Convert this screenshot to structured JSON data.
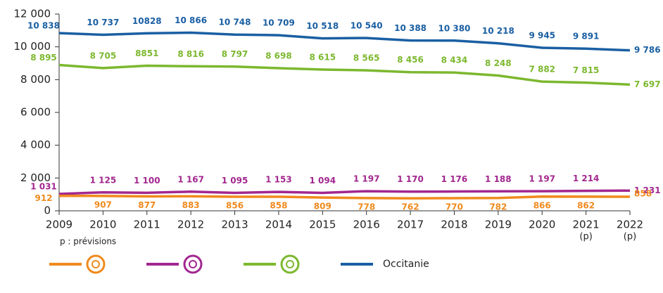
{
  "chart_data": {
    "type": "line",
    "categories": [
      "2009",
      "2010",
      "2011",
      "2012",
      "2013",
      "2014",
      "2015",
      "2016",
      "2017",
      "2018",
      "2019",
      "2020",
      "2021",
      "2022"
    ],
    "category_notes": [
      null,
      null,
      null,
      null,
      null,
      null,
      null,
      null,
      null,
      null,
      null,
      null,
      "(p)",
      "(p)"
    ],
    "note": "p : prévisions",
    "series": [
      {
        "name": "Occitanie",
        "color": "#1a5fa3",
        "values": [
          10838,
          10737,
          10828,
          10866,
          10748,
          10709,
          10518,
          10540,
          10388,
          10380,
          10218,
          9945,
          9891,
          9786
        ],
        "value_labels": [
          "10 838",
          "10 737",
          "10828",
          "10 866",
          "10 748",
          "10 709",
          "10 518",
          "10 540",
          "10 388",
          "10 380",
          "10 218",
          "9 945",
          "9 891",
          "9 786"
        ]
      },
      {
        "name": null,
        "color": "#7cb82f",
        "values": [
          8895,
          8705,
          8851,
          8816,
          8797,
          8698,
          8615,
          8565,
          8456,
          8434,
          8248,
          7882,
          7815,
          7697
        ],
        "value_labels": [
          "8 895",
          "8 705",
          "8851",
          "8 816",
          "8 797",
          "8 698",
          "8 615",
          "8 565",
          "8 456",
          "8 434",
          "8 248",
          "7 882",
          "7 815",
          "7 697"
        ]
      },
      {
        "name": null,
        "color": "#a2278f",
        "values": [
          1031,
          1125,
          1100,
          1167,
          1095,
          1153,
          1094,
          1197,
          1170,
          1176,
          1188,
          1197,
          1214,
          1231
        ],
        "value_labels": [
          "1 031",
          "1 125",
          "1 100",
          "1 167",
          "1 095",
          "1 153",
          "1 094",
          "1 197",
          "1 170",
          "1 176",
          "1 188",
          "1 197",
          "1 214",
          "1 231"
        ]
      },
      {
        "name": null,
        "color": "#f08a1d",
        "values": [
          912,
          907,
          877,
          883,
          856,
          858,
          809,
          778,
          762,
          770,
          782,
          866,
          862,
          858
        ]
      }
    ],
    "ylim": [
      0,
      12000
    ],
    "yticks": [
      0,
      {
        "value": 2000,
        "label": "2 000"
      },
      {
        "value": 4000,
        "label": "4 000"
      },
      {
        "value": 6000,
        "label": "6 000"
      },
      {
        "value": 8000,
        "label": "8 000"
      },
      {
        "value": 10000,
        "label": "10 000"
      },
      {
        "value": 12000,
        "label": "12 000"
      }
    ],
    "grid": false
  }
}
